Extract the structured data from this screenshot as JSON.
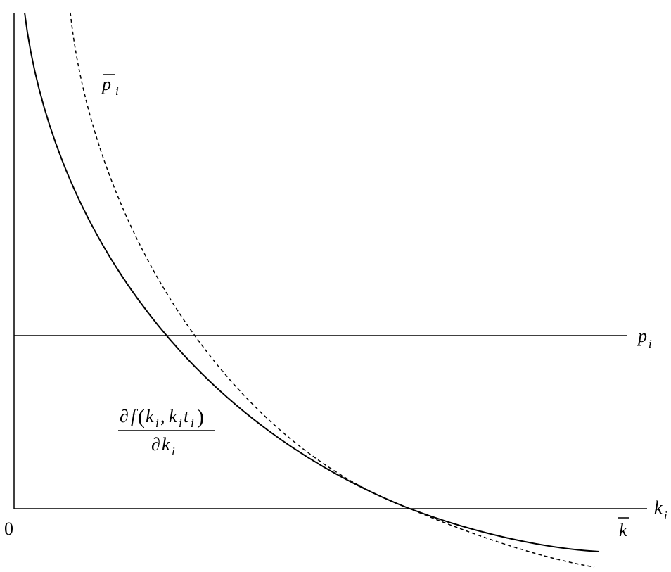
{
  "labels": {
    "origin": "0",
    "x_axis_var": "k",
    "x_axis_sub": "i",
    "kbar": "k",
    "pbar_var": "p",
    "pbar_sub": "i",
    "p_var": "p",
    "p_sub": "i",
    "mp_partial_1": "∂",
    "mp_f": "f",
    "mp_lparen": "(",
    "mp_k1": "k",
    "mp_k1_sub": "i",
    "mp_comma": ",",
    "mp_k2": "k",
    "mp_k2_sub": "i",
    "mp_t": "t",
    "mp_t_sub": "i",
    "mp_rparen": ")",
    "mp_partial_2": "∂",
    "mp_k3": "k",
    "mp_k3_sub": "i"
  },
  "style": {
    "stroke": "#000000",
    "background": "#ffffff"
  }
}
